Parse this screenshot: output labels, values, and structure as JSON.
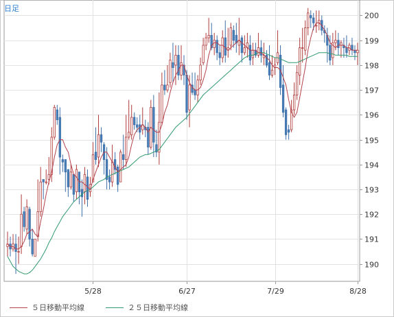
{
  "period_label": "日足",
  "legend": [
    {
      "label": "５日移動平均線",
      "color": "#b3404a"
    },
    {
      "label": "２５日移動平均線",
      "color": "#2f9a6f"
    }
  ],
  "colors": {
    "up": "#ffffff",
    "up_border": "#b03a3a",
    "down": "#4a7fb8",
    "down_border": "#3c6ea8",
    "grid": "#e2e2e2",
    "axis": "#999999"
  },
  "chart_data": {
    "type": "candlestick",
    "yaxis_position": "right",
    "ylim": [
      189.3,
      200.4
    ],
    "yticks": [
      190,
      191,
      192,
      193,
      194,
      195,
      196,
      197,
      198,
      199,
      200
    ],
    "xticks": [
      {
        "label": "5/28",
        "index": 31
      },
      {
        "label": "6/27",
        "index": 65
      },
      {
        "label": "7/29",
        "index": 97
      },
      {
        "label": "8/28",
        "index": 127
      }
    ],
    "candles": [
      [
        190.7,
        190.8,
        191.3,
        190.3
      ],
      [
        190.8,
        190.6,
        191.1,
        190.3
      ],
      [
        190.6,
        190.8,
        191.2,
        190.5
      ],
      [
        190.8,
        190.5,
        191.2,
        189.6
      ],
      [
        190.5,
        190.5,
        191.1,
        190.0
      ],
      [
        190.7,
        192.0,
        192.8,
        190.4
      ],
      [
        192.1,
        191.5,
        192.3,
        191.3
      ],
      [
        191.4,
        192.3,
        192.6,
        191.2
      ],
      [
        192.2,
        191.0,
        192.3,
        190.7
      ],
      [
        191.0,
        190.4,
        191.4,
        190.3
      ],
      [
        190.3,
        191.0,
        191.0,
        190.3
      ],
      [
        191.1,
        192.1,
        193.4,
        190.9
      ],
      [
        192.1,
        193.3,
        193.9,
        191.9
      ],
      [
        193.4,
        193.3,
        193.4,
        192.6
      ],
      [
        193.3,
        193.3,
        193.8,
        193.2
      ],
      [
        193.4,
        193.6,
        194.3,
        193.2
      ],
      [
        193.6,
        195.1,
        195.5,
        193.3
      ],
      [
        195.1,
        196.3,
        196.4,
        195.0
      ],
      [
        196.2,
        195.8,
        196.4,
        195.6
      ],
      [
        195.9,
        194.3,
        196.3,
        193.6
      ],
      [
        194.2,
        194.1,
        194.4,
        193.7
      ],
      [
        194.2,
        193.7,
        194.1,
        192.9
      ],
      [
        193.8,
        193.1,
        193.8,
        192.7
      ],
      [
        193.1,
        193.7,
        194.0,
        193.0
      ],
      [
        193.6,
        192.8,
        193.5,
        192.5
      ],
      [
        192.9,
        193.8,
        194.0,
        192.6
      ],
      [
        193.7,
        192.9,
        193.6,
        192.4
      ],
      [
        193.0,
        192.7,
        193.4,
        191.9
      ],
      [
        192.9,
        193.6,
        193.9,
        192.4
      ],
      [
        193.5,
        192.6,
        193.8,
        192.3
      ],
      [
        192.9,
        193.2,
        193.5,
        192.7
      ],
      [
        193.3,
        194.4,
        194.9,
        193.3
      ],
      [
        194.5,
        194.2,
        195.5,
        194.0
      ],
      [
        194.3,
        195.2,
        196.0,
        193.9
      ],
      [
        195.2,
        194.9,
        195.5,
        194.5
      ],
      [
        194.8,
        194.2,
        194.9,
        193.6
      ],
      [
        194.2,
        193.4,
        194.7,
        193.0
      ],
      [
        193.5,
        193.3,
        193.8,
        193.0
      ],
      [
        193.3,
        194.1,
        194.8,
        193.1
      ],
      [
        194.2,
        193.8,
        194.5,
        193.6
      ],
      [
        193.9,
        193.2,
        194.0,
        192.9
      ],
      [
        193.3,
        194.5,
        194.6,
        193.3
      ],
      [
        194.4,
        194.2,
        195.2,
        193.8
      ],
      [
        194.2,
        195.1,
        196.0,
        193.9
      ],
      [
        195.1,
        195.3,
        196.6,
        195.0
      ],
      [
        195.2,
        195.9,
        196.4,
        195.0
      ],
      [
        195.9,
        195.6,
        196.1,
        195.4
      ],
      [
        195.6,
        195.5,
        195.9,
        195.3
      ],
      [
        195.6,
        195.3,
        196.0,
        195.0
      ],
      [
        195.4,
        195.6,
        196.3,
        195.2
      ],
      [
        195.5,
        195.4,
        195.8,
        195.1
      ],
      [
        195.5,
        194.7,
        195.7,
        194.4
      ],
      [
        194.7,
        196.3,
        196.6,
        194.6
      ],
      [
        196.3,
        194.9,
        196.8,
        194.3
      ],
      [
        194.8,
        194.5,
        195.4,
        194.3
      ],
      [
        194.5,
        195.7,
        196.9,
        194.0
      ],
      [
        195.7,
        197.2,
        197.7,
        195.6
      ],
      [
        197.2,
        197.0,
        197.8,
        196.8
      ],
      [
        197.0,
        197.2,
        198.0,
        196.9
      ],
      [
        197.3,
        198.2,
        198.5,
        197.1
      ],
      [
        198.1,
        197.9,
        198.9,
        197.3
      ],
      [
        198.0,
        198.4,
        198.8,
        197.2
      ],
      [
        198.4,
        197.6,
        198.8,
        197.4
      ],
      [
        197.6,
        198.1,
        198.8,
        197.4
      ],
      [
        198.0,
        197.6,
        198.4,
        197.2
      ],
      [
        197.6,
        196.1,
        197.8,
        195.8
      ],
      [
        196.2,
        197.2,
        197.6,
        195.5
      ],
      [
        197.2,
        196.9,
        197.7,
        196.8
      ],
      [
        197.0,
        196.8,
        197.7,
        196.6
      ],
      [
        196.8,
        197.4,
        197.6,
        196.5
      ],
      [
        197.4,
        198.0,
        198.3,
        197.2
      ],
      [
        198.1,
        198.8,
        199.1,
        198.0
      ],
      [
        198.8,
        199.1,
        199.3,
        198.6
      ],
      [
        199.1,
        199.2,
        199.9,
        198.9
      ],
      [
        199.2,
        198.7,
        199.7,
        198.6
      ],
      [
        198.7,
        199.0,
        199.3,
        198.4
      ],
      [
        199.0,
        198.5,
        199.2,
        198.2
      ],
      [
        198.5,
        198.3,
        198.8,
        198.0
      ],
      [
        198.3,
        199.1,
        199.4,
        198.1
      ],
      [
        199.1,
        198.4,
        199.8,
        198.1
      ],
      [
        198.6,
        198.7,
        199.5,
        198.3
      ],
      [
        198.8,
        199.5,
        199.7,
        198.6
      ],
      [
        199.4,
        199.0,
        199.6,
        198.7
      ],
      [
        199.2,
        198.9,
        199.7,
        198.5
      ],
      [
        198.8,
        199.0,
        199.9,
        198.4
      ],
      [
        199.1,
        198.5,
        199.2,
        198.1
      ],
      [
        198.5,
        198.7,
        199.2,
        198.4
      ],
      [
        198.7,
        198.9,
        199.3,
        198.3
      ],
      [
        198.8,
        198.2,
        199.2,
        198.0
      ],
      [
        198.3,
        198.6,
        198.9,
        198.0
      ],
      [
        198.6,
        198.4,
        198.9,
        198.3
      ],
      [
        198.4,
        198.7,
        199.3,
        198.3
      ],
      [
        198.7,
        198.4,
        199.0,
        198.1
      ],
      [
        198.3,
        198.4,
        198.9,
        198.0
      ],
      [
        198.4,
        198.0,
        198.6,
        197.9
      ],
      [
        198.1,
        197.6,
        198.8,
        197.4
      ],
      [
        197.6,
        197.8,
        198.4,
        197.5
      ],
      [
        197.9,
        198.0,
        198.3,
        197.6
      ],
      [
        198.1,
        198.5,
        199.4,
        198.0
      ],
      [
        198.4,
        197.1,
        198.8,
        196.8
      ],
      [
        197.2,
        196.1,
        198.0,
        195.9
      ],
      [
        196.2,
        195.2,
        196.3,
        195.0
      ],
      [
        195.4,
        195.3,
        195.6,
        195.0
      ],
      [
        195.4,
        196.2,
        196.6,
        195.3
      ],
      [
        196.2,
        196.8,
        197.3,
        196.0
      ],
      [
        196.8,
        197.7,
        198.0,
        196.6
      ],
      [
        197.6,
        198.7,
        199.1,
        197.2
      ],
      [
        198.7,
        198.7,
        199.5,
        198.1
      ],
      [
        198.6,
        199.5,
        199.8,
        198.4
      ],
      [
        199.5,
        200.1,
        200.3,
        199.2
      ],
      [
        200.0,
        199.9,
        200.2,
        199.5
      ],
      [
        199.9,
        199.7,
        200.1,
        199.4
      ],
      [
        199.6,
        199.6,
        200.2,
        199.3
      ],
      [
        199.7,
        199.8,
        200.2,
        199.4
      ],
      [
        199.8,
        199.4,
        200.0,
        199.2
      ],
      [
        199.4,
        199.3,
        199.6,
        198.9
      ],
      [
        199.2,
        198.8,
        199.5,
        198.1
      ],
      [
        198.8,
        198.2,
        199.2,
        198.0
      ],
      [
        198.3,
        198.9,
        199.3,
        198.0
      ],
      [
        198.9,
        199.0,
        199.4,
        198.6
      ],
      [
        199.0,
        198.7,
        199.3,
        198.4
      ],
      [
        198.8,
        198.9,
        199.0,
        198.3
      ],
      [
        198.8,
        198.7,
        199.1,
        198.3
      ],
      [
        198.7,
        198.5,
        199.2,
        198.3
      ],
      [
        198.6,
        198.8,
        198.9,
        198.4
      ],
      [
        198.8,
        198.6,
        199.1,
        198.4
      ],
      [
        198.6,
        198.5,
        198.8,
        198.2
      ],
      [
        198.5,
        198.6,
        198.9,
        198.0
      ]
    ],
    "ma5": [
      190.8,
      190.7,
      190.7,
      190.6,
      190.6,
      190.7,
      190.9,
      191.2,
      191.3,
      191.4,
      191.2,
      191.1,
      191.7,
      192.2,
      192.8,
      193.3,
      193.7,
      194.3,
      194.8,
      195.0,
      195.0,
      194.7,
      194.5,
      194.0,
      193.6,
      193.5,
      193.3,
      193.3,
      193.2,
      193.1,
      193.0,
      193.4,
      193.7,
      194.0,
      194.3,
      194.5,
      194.5,
      194.3,
      194.1,
      193.9,
      193.7,
      193.8,
      193.9,
      194.0,
      194.3,
      194.8,
      195.2,
      195.4,
      195.5,
      195.6,
      195.5,
      195.3,
      195.5,
      195.4,
      195.3,
      195.3,
      195.6,
      196.1,
      196.4,
      196.9,
      197.3,
      197.6,
      197.8,
      198.0,
      198.0,
      197.6,
      197.3,
      197.1,
      197.0,
      197.0,
      197.1,
      197.4,
      197.8,
      198.4,
      198.8,
      198.9,
      198.9,
      198.8,
      198.8,
      198.7,
      198.6,
      198.7,
      198.8,
      198.9,
      199.0,
      198.9,
      198.8,
      198.7,
      198.6,
      198.6,
      198.6,
      198.5,
      198.5,
      198.4,
      198.3,
      198.2,
      198.0,
      197.9,
      197.9,
      197.8,
      197.5,
      197.2,
      196.6,
      196.1,
      195.9,
      196.1,
      196.7,
      197.3,
      197.9,
      198.6,
      199.1,
      199.5,
      199.7,
      199.7,
      199.6,
      199.4,
      199.2,
      198.9,
      198.8,
      198.7,
      198.8,
      198.8,
      198.8,
      198.7,
      198.7,
      198.6,
      198.6,
      198.6
    ],
    "ma25": [
      190.3,
      190.1,
      189.9,
      189.8,
      189.7,
      189.65,
      189.6,
      189.6,
      189.65,
      189.75,
      189.9,
      190.05,
      190.2,
      190.4,
      190.6,
      190.85,
      191.05,
      191.3,
      191.5,
      191.7,
      191.9,
      192.05,
      192.2,
      192.35,
      192.5,
      192.6,
      192.7,
      192.8,
      192.9,
      192.95,
      193.0,
      193.1,
      193.2,
      193.3,
      193.35,
      193.4,
      193.5,
      193.55,
      193.6,
      193.65,
      193.7,
      193.75,
      193.8,
      193.85,
      193.9,
      194.0,
      194.1,
      194.2,
      194.3,
      194.35,
      194.4,
      194.4,
      194.45,
      194.5,
      194.55,
      194.6,
      194.75,
      194.9,
      195.05,
      195.2,
      195.35,
      195.5,
      195.6,
      195.7,
      195.8,
      195.9,
      196.05,
      196.2,
      196.35,
      196.5,
      196.65,
      196.8,
      196.9,
      197.0,
      197.1,
      197.2,
      197.3,
      197.4,
      197.5,
      197.6,
      197.7,
      197.8,
      197.9,
      198.0,
      198.1,
      198.2,
      198.3,
      198.35,
      198.4,
      198.4,
      198.45,
      198.5,
      198.5,
      198.5,
      198.45,
      198.4,
      198.35,
      198.3,
      198.3,
      198.25,
      198.2,
      198.15,
      198.1,
      198.1,
      198.1,
      198.1,
      198.15,
      198.2,
      198.25,
      198.3,
      198.35,
      198.4,
      198.45,
      198.5,
      198.5,
      198.5,
      198.5,
      198.45,
      198.45,
      198.4,
      198.4,
      198.4,
      198.4,
      198.4,
      198.35,
      198.35,
      198.35,
      198.35
    ]
  }
}
